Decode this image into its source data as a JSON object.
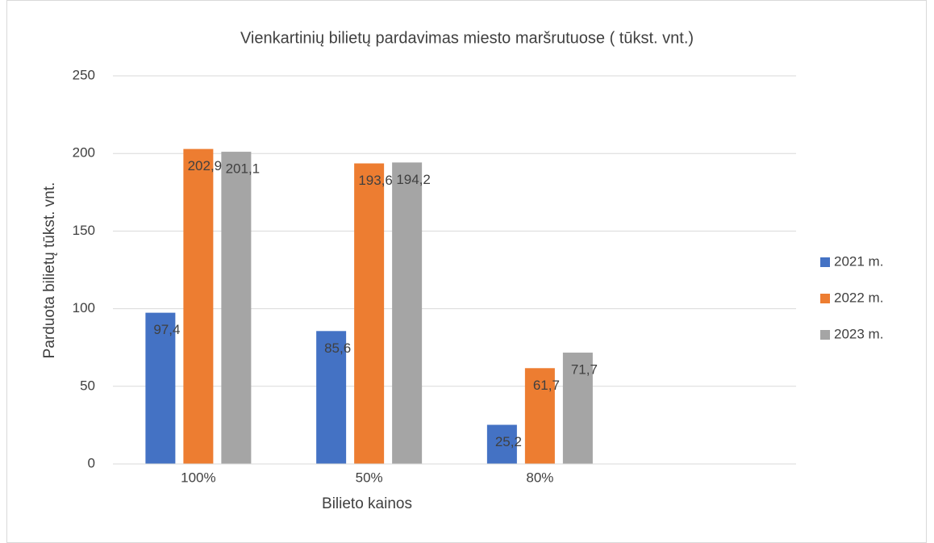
{
  "chart_data": {
    "type": "bar",
    "title": "Vienkartinių bilietų pardavimas miesto maršrutuose ( tūkst. vnt.)",
    "x_label": "Bilieto kainos",
    "y_label": "Parduota bilietų tūkst. vnt.",
    "categories": [
      "100%",
      "50%",
      "80%",
      null
    ],
    "series": [
      {
        "name": "2021 m.",
        "color": "#4472c4",
        "values": [
          97.4,
          85.6,
          25.2,
          null
        ],
        "value_labels": [
          "97,4",
          "85,6",
          "25,2",
          null
        ]
      },
      {
        "name": "2022 m.",
        "color": "#ed7d31",
        "values": [
          202.9,
          193.6,
          61.7,
          null
        ],
        "value_labels": [
          "202,9",
          "193,6",
          "61,7",
          null
        ]
      },
      {
        "name": "2023 m.",
        "color": "#a5a5a5",
        "values": [
          201.1,
          194.2,
          71.7,
          null
        ],
        "value_labels": [
          "201,1",
          "194,2",
          "71,7",
          null
        ]
      }
    ],
    "ylim": [
      0,
      250
    ],
    "yticks": [
      0,
      50,
      100,
      150,
      200,
      250
    ],
    "grid": true,
    "legend": "right"
  }
}
